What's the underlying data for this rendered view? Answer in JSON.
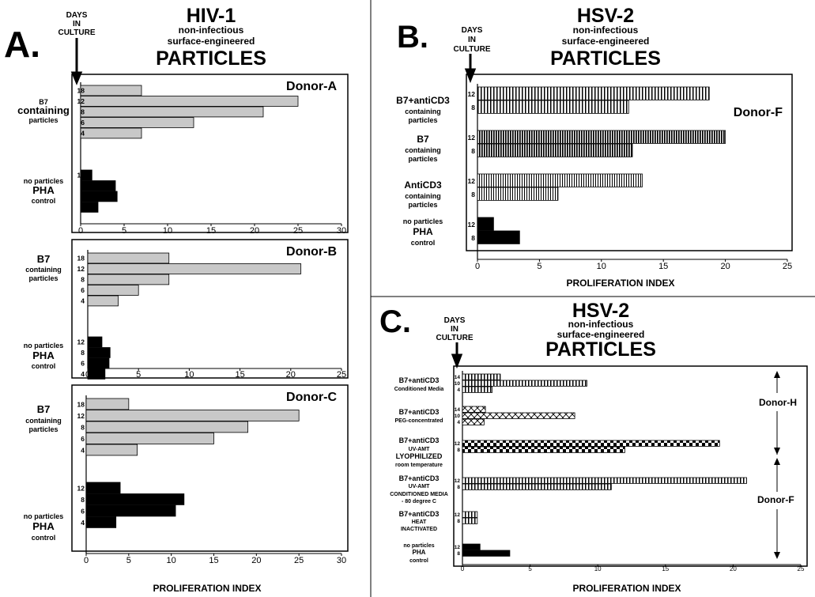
{
  "figure": {
    "colors": {
      "gray": "#c8c8c8",
      "black": "#000000",
      "frame": "#000000"
    },
    "shared": {
      "days_header": [
        "DAYS",
        "IN",
        "CULTURE"
      ],
      "subtitle": [
        "non-infectious",
        "surface-engineered"
      ],
      "particles": "PARTICLES",
      "xlabel": "PROLIFERATION INDEX"
    },
    "panel_a": {
      "letter": "A.",
      "title": "HIV-1",
      "xlabel": "PROLIFERATION INDEX"
    },
    "panel_b": {
      "letter": "B.",
      "title": "HSV-2",
      "xlabel": "PROLIFERATION INDEX"
    },
    "panel_c": {
      "letter": "C.",
      "title": "HSV-2",
      "xlabel": "PROLIFERATION INDEX",
      "donor_h": "Donor-H",
      "donor_f": "Donor-F"
    }
  },
  "chart_data": [
    {
      "type": "bar",
      "id": "A1",
      "donor": "Donor-A",
      "xlim": [
        0,
        30
      ],
      "xticks": [
        0,
        5,
        10,
        15,
        20,
        25,
        30
      ],
      "groups": [
        {
          "label_lines": [
            "B7",
            "containing",
            "particles"
          ],
          "fill": "gray",
          "bars": [
            {
              "day": "18",
              "value": 7
            },
            {
              "day": "12",
              "value": 25
            },
            {
              "day": "8",
              "value": 21
            },
            {
              "day": "6",
              "value": 13
            },
            {
              "day": "4",
              "value": 7
            }
          ]
        },
        {
          "label_lines": [
            "no particles",
            "PHA",
            "control"
          ],
          "fill": "black",
          "bars": [
            {
              "day": "12",
              "value": 1.3
            },
            {
              "day": "8",
              "value": 4
            },
            {
              "day": "6",
              "value": 4.2
            },
            {
              "day": "4",
              "value": 2
            }
          ]
        }
      ]
    },
    {
      "type": "bar",
      "id": "A2",
      "donor": "Donor-B",
      "xlim": [
        0,
        25
      ],
      "xticks": [
        0,
        5,
        10,
        15,
        20,
        25
      ],
      "groups": [
        {
          "label_lines": [
            "B7",
            "containing",
            "particles"
          ],
          "fill": "gray",
          "bars": [
            {
              "day": "18",
              "value": 8
            },
            {
              "day": "12",
              "value": 21
            },
            {
              "day": "8",
              "value": 8
            },
            {
              "day": "6",
              "value": 5
            },
            {
              "day": "4",
              "value": 3
            }
          ]
        },
        {
          "label_lines": [
            "no particles",
            "PHA",
            "control"
          ],
          "fill": "black",
          "bars": [
            {
              "day": "12",
              "value": 1.4
            },
            {
              "day": "8",
              "value": 2.2
            },
            {
              "day": "6",
              "value": 2.1
            },
            {
              "day": "4",
              "value": 1.7
            }
          ]
        }
      ]
    },
    {
      "type": "bar",
      "id": "A3",
      "donor": "Donor-C",
      "xlim": [
        0,
        30
      ],
      "xticks": [
        0,
        5,
        10,
        15,
        20,
        25,
        30
      ],
      "groups": [
        {
          "label_lines": [
            "B7",
            "containing",
            "particles"
          ],
          "fill": "gray",
          "bars": [
            {
              "day": "18",
              "value": 5
            },
            {
              "day": "12",
              "value": 25
            },
            {
              "day": "8",
              "value": 19
            },
            {
              "day": "6",
              "value": 15
            },
            {
              "day": "4",
              "value": 6
            }
          ]
        },
        {
          "label_lines": [
            "no particles",
            "PHA",
            "control"
          ],
          "fill": "black",
          "bars": [
            {
              "day": "12",
              "value": 4
            },
            {
              "day": "8",
              "value": 11.5
            },
            {
              "day": "6",
              "value": 10.5
            },
            {
              "day": "4",
              "value": 3.5
            }
          ]
        }
      ]
    },
    {
      "type": "bar",
      "id": "B",
      "donor": "Donor-F",
      "xlim": [
        0,
        25
      ],
      "xticks": [
        0,
        5,
        10,
        15,
        20,
        25
      ],
      "groups": [
        {
          "label_lines": [
            "B7+antiCD3",
            "containing",
            "particles"
          ],
          "fill": "vstripe",
          "bars": [
            {
              "day": "12",
              "value": 18.7
            },
            {
              "day": "8",
              "value": 12.2
            }
          ]
        },
        {
          "label_lines": [
            "B7",
            "containing",
            "particles"
          ],
          "fill": "vstripe-dense",
          "bars": [
            {
              "day": "12",
              "value": 20
            },
            {
              "day": "8",
              "value": 12.5
            }
          ]
        },
        {
          "label_lines": [
            "AntiCD3",
            "containing",
            "particles"
          ],
          "fill": "vstripe-fine",
          "bars": [
            {
              "day": "12",
              "value": 13.3
            },
            {
              "day": "8",
              "value": 6.5
            }
          ]
        },
        {
          "label_lines": [
            "no particles",
            "PHA",
            "control"
          ],
          "fill": "black",
          "bars": [
            {
              "day": "12",
              "value": 1.3
            },
            {
              "day": "8",
              "value": 3.4
            }
          ]
        }
      ]
    },
    {
      "type": "bar",
      "id": "C",
      "xlim": [
        0,
        25
      ],
      "xticks": [
        0,
        5,
        10,
        15,
        20,
        25
      ],
      "groups": [
        {
          "label_lines": [
            "B7+antiCD3",
            "Conditioned Media"
          ],
          "fill": "vstripe",
          "bars": [
            {
              "day": "14",
              "value": 2.8
            },
            {
              "day": "10",
              "value": 9.2
            },
            {
              "day": "4",
              "value": 2.2
            }
          ]
        },
        {
          "label_lines": [
            "B7+antiCD3",
            "PEG-concentrated"
          ],
          "fill": "crosshatch",
          "bars": [
            {
              "day": "14",
              "value": 1.7
            },
            {
              "day": "10",
              "value": 8.3
            },
            {
              "day": "4",
              "value": 1.6
            }
          ]
        },
        {
          "label_lines": [
            "B7+antiCD3",
            "UV-AMT",
            "LYOPHILIZED",
            "room temperature"
          ],
          "fill": "checker",
          "bars": [
            {
              "day": "12",
              "value": 19
            },
            {
              "day": "8",
              "value": 12
            }
          ]
        },
        {
          "label_lines": [
            "B7+antiCD3",
            "UV-AMT",
            "CONDITIONED MEDIA",
            "- 80 degree C"
          ],
          "fill": "vstripe",
          "bars": [
            {
              "day": "12",
              "value": 21
            },
            {
              "day": "8",
              "value": 11
            }
          ]
        },
        {
          "label_lines": [
            "B7+antiCD3",
            "HEAT",
            "INACTIVATED"
          ],
          "fill": "vstripe",
          "bars": [
            {
              "day": "12",
              "value": 1.1
            },
            {
              "day": "8",
              "value": 1.1
            }
          ]
        },
        {
          "label_lines": [
            "no particles",
            "PHA",
            "control"
          ],
          "fill": "black",
          "bars": [
            {
              "day": "12",
              "value": 1.3
            },
            {
              "day": "8",
              "value": 3.5
            }
          ]
        }
      ]
    }
  ]
}
